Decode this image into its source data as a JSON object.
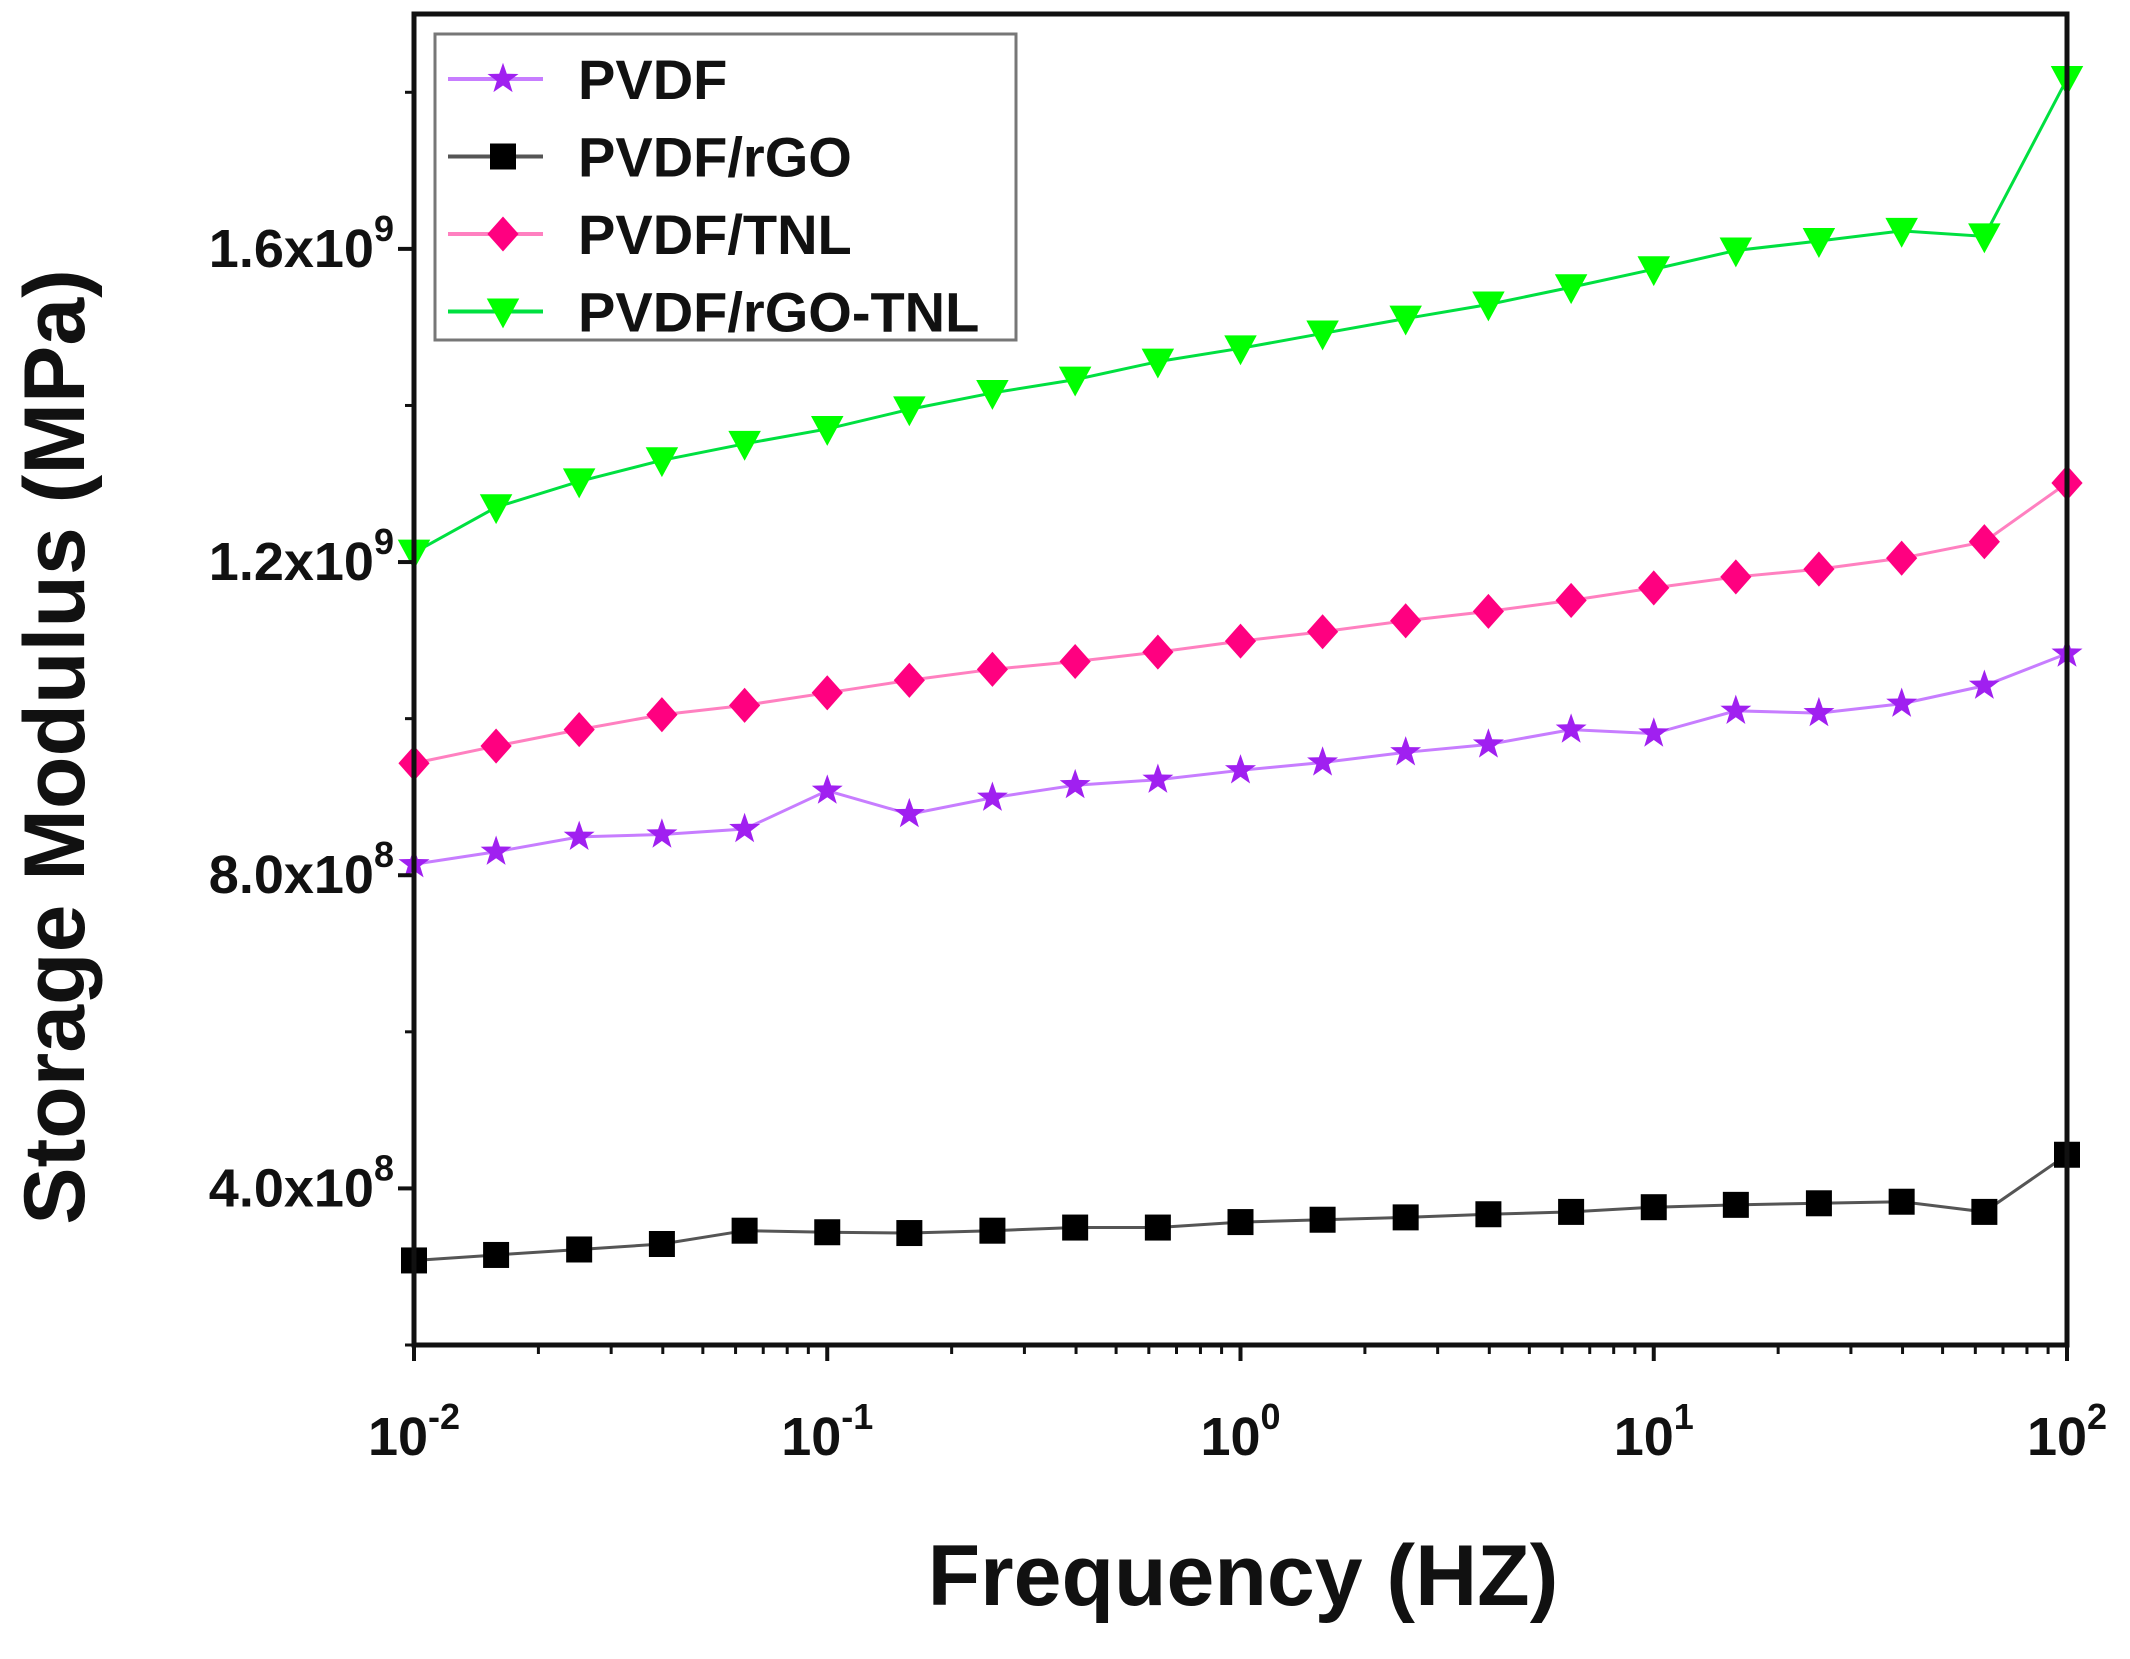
{
  "chart_data": {
    "type": "line",
    "title": "",
    "xlabel": "Frequency (HZ)",
    "ylabel": "Storage Modulus (MPa)",
    "xscale": "log",
    "xlim": [
      0.01,
      100
    ],
    "ylim": [
      200000000,
      1900000000
    ],
    "x_ticks": [
      {
        "value": 0.01,
        "base": "10",
        "exp": "-2"
      },
      {
        "value": 0.1,
        "base": "10",
        "exp": "-1"
      },
      {
        "value": 1,
        "base": "10",
        "exp": "0"
      },
      {
        "value": 10,
        "base": "10",
        "exp": "1"
      },
      {
        "value": 100,
        "base": "10",
        "exp": "2"
      }
    ],
    "y_ticks": [
      {
        "value": 400000000,
        "mant": "4.0x10",
        "exp": "8"
      },
      {
        "value": 800000000,
        "mant": "8.0x10",
        "exp": "8"
      },
      {
        "value": 1200000000,
        "mant": "1.2x10",
        "exp": "9"
      },
      {
        "value": 1600000000,
        "mant": "1.6x10",
        "exp": "9"
      }
    ],
    "legend_position": "top-left",
    "x": [
      0.01,
      0.0158,
      0.0251,
      0.0398,
      0.0631,
      0.1,
      0.158,
      0.251,
      0.398,
      0.631,
      1,
      1.58,
      2.51,
      3.98,
      6.31,
      10,
      15.8,
      25.1,
      39.8,
      63.1,
      100
    ],
    "series": [
      {
        "name": "PVDF",
        "color": "#a020f0",
        "line_color": "#c77dff",
        "marker": "star",
        "values": [
          814000000.0,
          830000000.0,
          849000000.0,
          852000000.0,
          859000000.0,
          908000000.0,
          878000000.0,
          899000000.0,
          915000000.0,
          922000000.0,
          934000000.0,
          944000000.0,
          957000000.0,
          967000000.0,
          986000000.0,
          981000000.0,
          1010000000.0,
          1007000000.0,
          1019000000.0,
          1042000000.0,
          1083000000.0
        ]
      },
      {
        "name": "PVDF/rGO",
        "color": "#000000",
        "line_color": "#555555",
        "marker": "square",
        "values": [
          308000000.0,
          315000000.0,
          322000000.0,
          329000000.0,
          346000000.0,
          344000000.0,
          343000000.0,
          346000000.0,
          350000000.0,
          350000000.0,
          357000000.0,
          360000000.0,
          363000000.0,
          367000000.0,
          370000000.0,
          376000000.0,
          379000000.0,
          381000000.0,
          383000000.0,
          370000000.0,
          443000000.0
        ]
      },
      {
        "name": "PVDF/TNL",
        "color": "#ff0080",
        "line_color": "#ff80c0",
        "marker": "diamond",
        "values": [
          943000000.0,
          965000000.0,
          986000000.0,
          1005000000.0,
          1017000000.0,
          1033000000.0,
          1049000000.0,
          1063000000.0,
          1073000000.0,
          1085000000.0,
          1099000000.0,
          1111000000.0,
          1125000000.0,
          1137000000.0,
          1151000000.0,
          1167000000.0,
          1181000000.0,
          1191000000.0,
          1205000000.0,
          1226000000.0,
          1301000000.0
        ]
      },
      {
        "name": "PVDF/rGO-TNL",
        "color": "#00ff00",
        "line_color": "#00e040",
        "marker": "triangle-down",
        "values": [
          1212000000.0,
          1270000000.0,
          1303000000.0,
          1330000000.0,
          1351000000.0,
          1370000000.0,
          1395000000.0,
          1416000000.0,
          1433000000.0,
          1456000000.0,
          1473000000.0,
          1492000000.0,
          1511000000.0,
          1529000000.0,
          1551000000.0,
          1574000000.0,
          1598000000.0,
          1610000000.0,
          1623000000.0,
          1616000000.0,
          1817000000.0
        ]
      }
    ]
  }
}
